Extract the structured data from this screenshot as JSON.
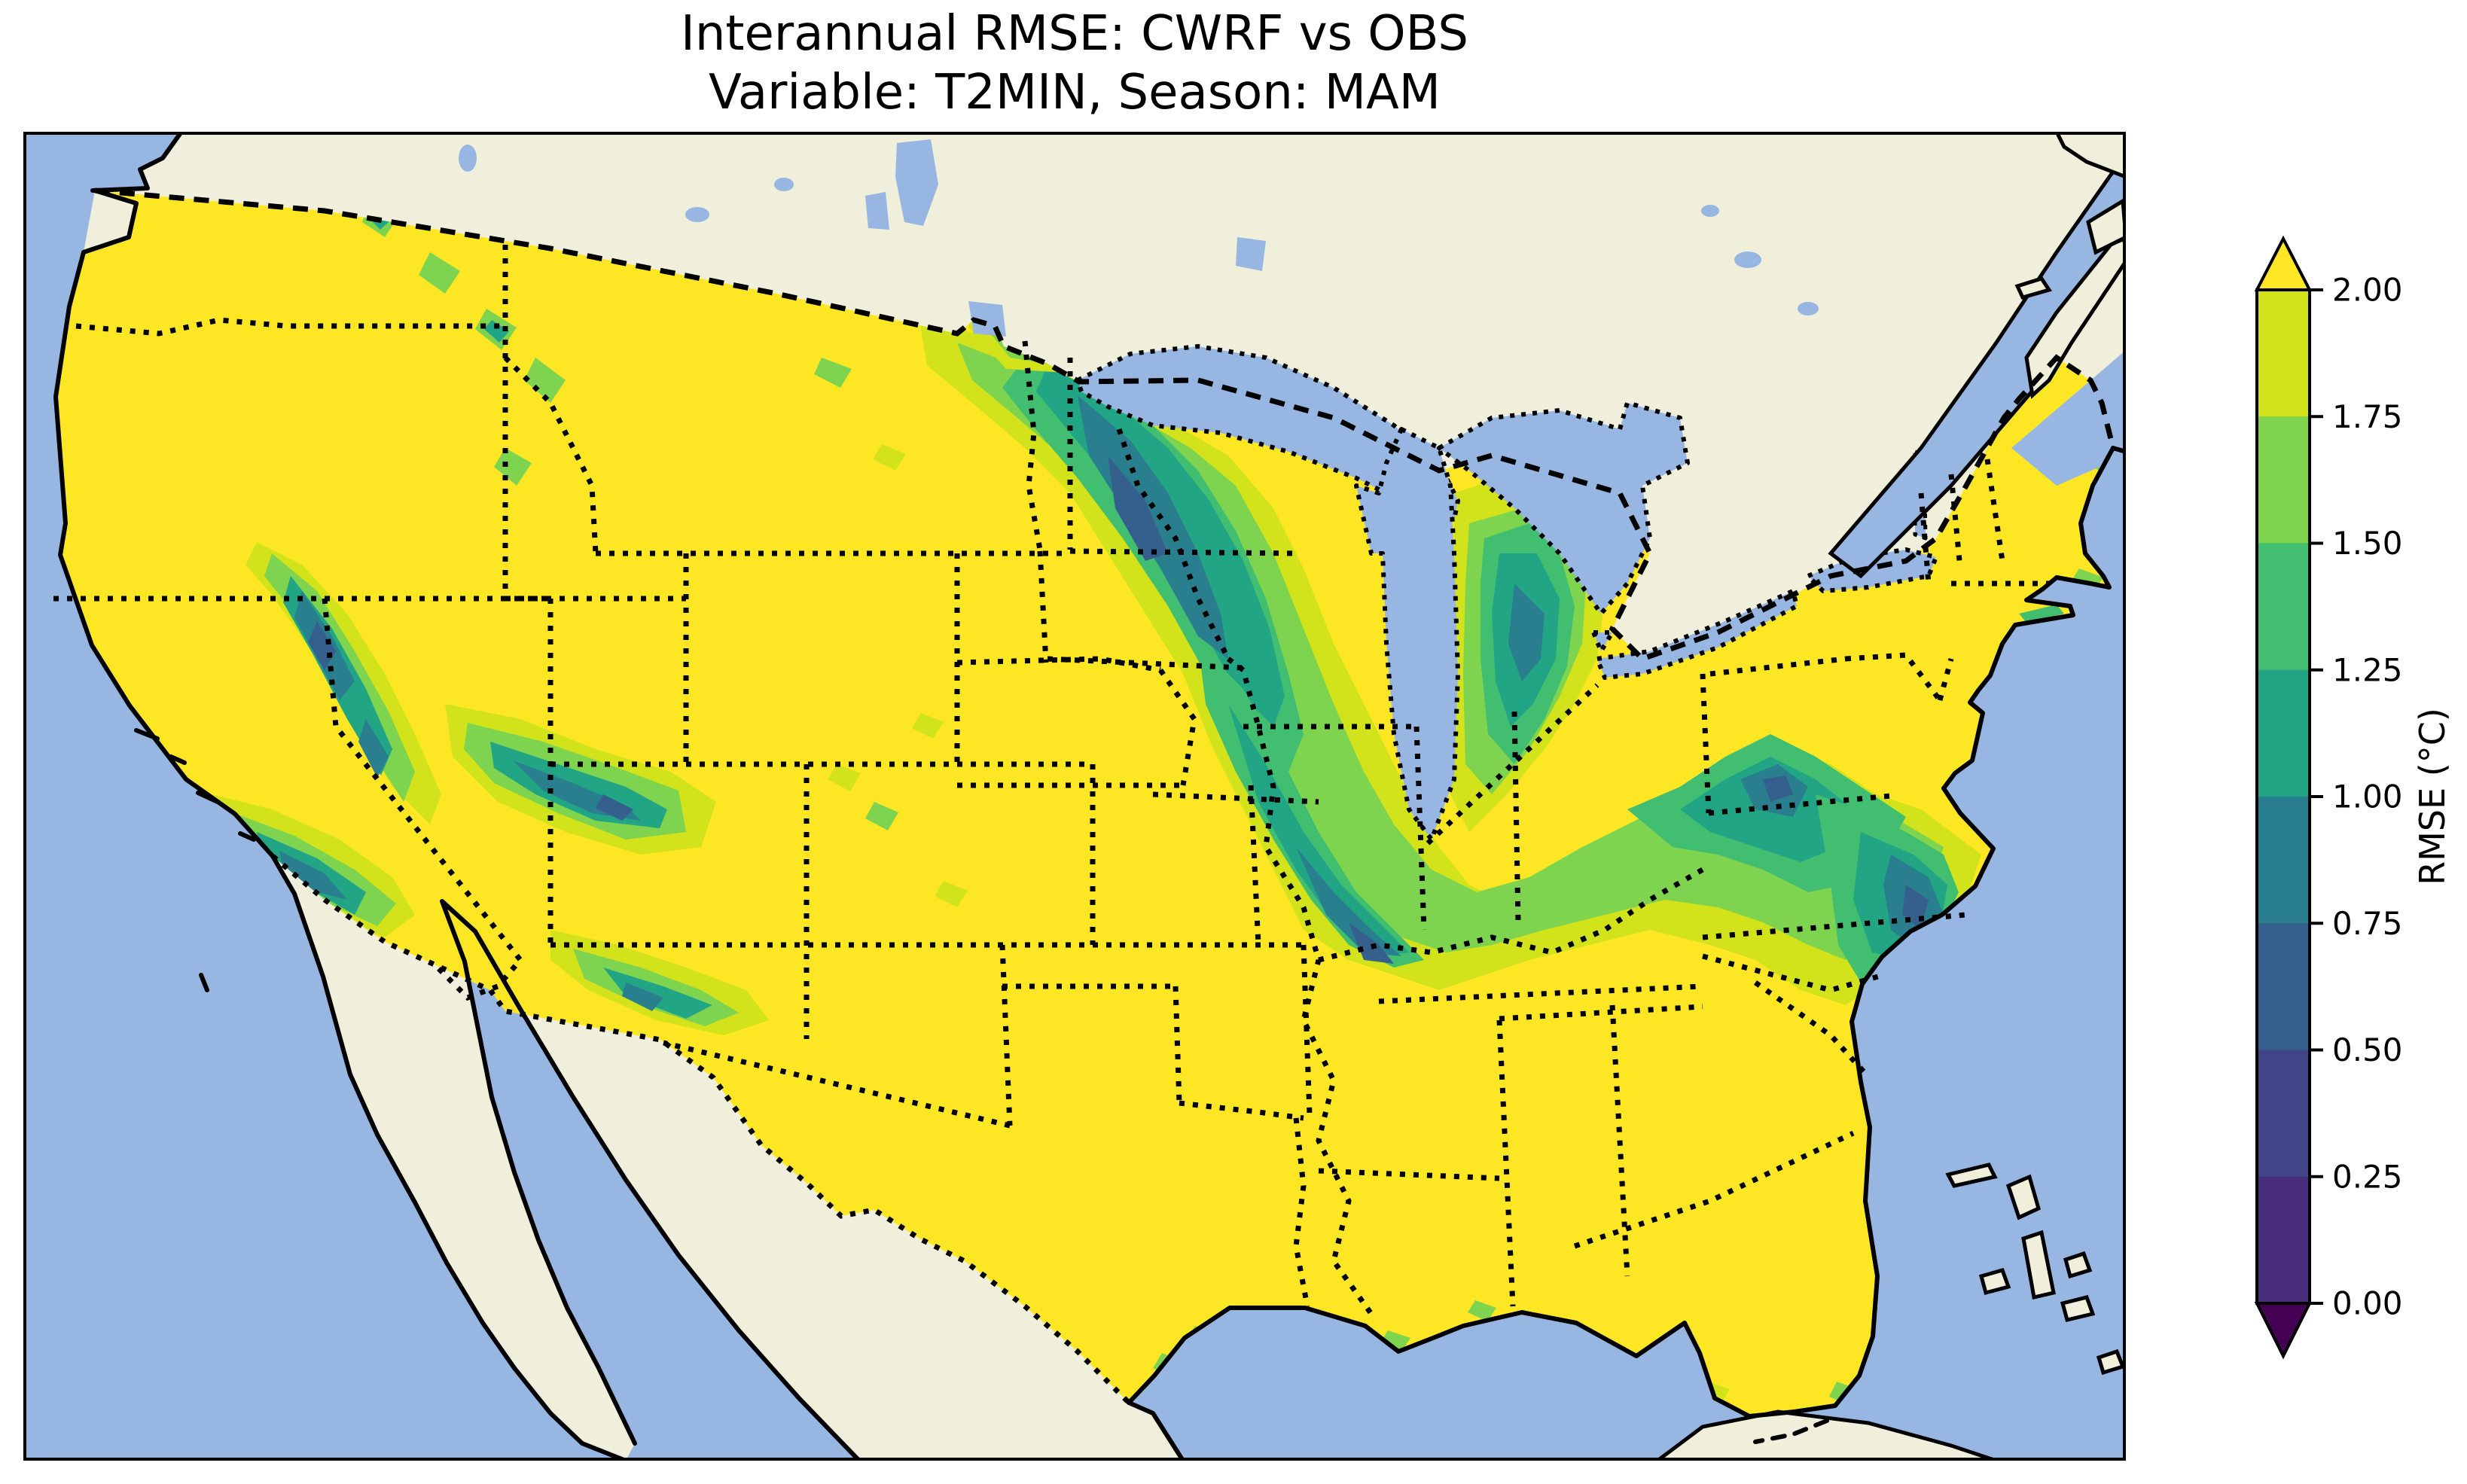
{
  "title": {
    "line1": "Interannual RMSE: CWRF vs OBS",
    "line2": "Variable: T2MIN, Season: MAM"
  },
  "colorbar": {
    "label": "RMSE (°C)",
    "ticks": [
      "2.00",
      "1.75",
      "1.50",
      "1.25",
      "1.00",
      "0.75",
      "0.50",
      "0.25",
      "0.00"
    ],
    "segments_top_to_bottom": [
      "#d2e21b",
      "#7ed34f",
      "#42be71",
      "#21a585",
      "#2a7f8e",
      "#355f8d",
      "#414487",
      "#472d7b"
    ],
    "over_color": "#fde725",
    "under_color": "#440154",
    "outline_color": "#000000"
  },
  "colors": {
    "ocean": "#97b6e1",
    "lake": "#97b6e1",
    "land_other": "#efefdb",
    "usa_over": "#fde725",
    "b175": "#d2e21b",
    "b150": "#7ed34f",
    "b125": "#42be71",
    "b100": "#21a585",
    "b075": "#2a7f8e",
    "b050": "#355f8d",
    "coast": "#000000",
    "border": "#000000",
    "frame": "#000000"
  },
  "chart_data": {
    "type": "heatmap",
    "title": "Interannual RMSE: CWRF vs OBS",
    "subtitle": "Variable: T2MIN, Season: MAM",
    "colorbar_label": "RMSE (°C)",
    "levels": [
      0.0,
      0.25,
      0.5,
      0.75,
      1.0,
      1.25,
      1.5,
      1.75,
      2.0
    ],
    "extend": "both",
    "colormap": "viridis (discrete, 8 bands)",
    "region_values": [
      {
        "region": "Most of CONUS (West, Plains, South, New England)",
        "rmse": "> 2.00"
      },
      {
        "region": "Minnesota / Wisconsin / Upper Midwest swath",
        "rmse": "0.50 - 1.25"
      },
      {
        "region": "South of Lake Michigan (Illinois/Indiana)",
        "rmse": "0.50 - 0.75"
      },
      {
        "region": "Lower Michigan / Ohio / Pennsylvania",
        "rmse": "0.75 - 1.50"
      },
      {
        "region": "Mid-Atlantic / Chesapeake Bay area",
        "rmse": "0.50 - 1.25"
      },
      {
        "region": "Sierra Nevada / southern California / Nevada-Utah-Arizona mountains",
        "rmse": "0.50 - 1.25"
      },
      {
        "region": "Cascades, Montana Rockies, west Texas mountains (scattered spots)",
        "rmse": "1.00 - 1.75"
      }
    ]
  }
}
